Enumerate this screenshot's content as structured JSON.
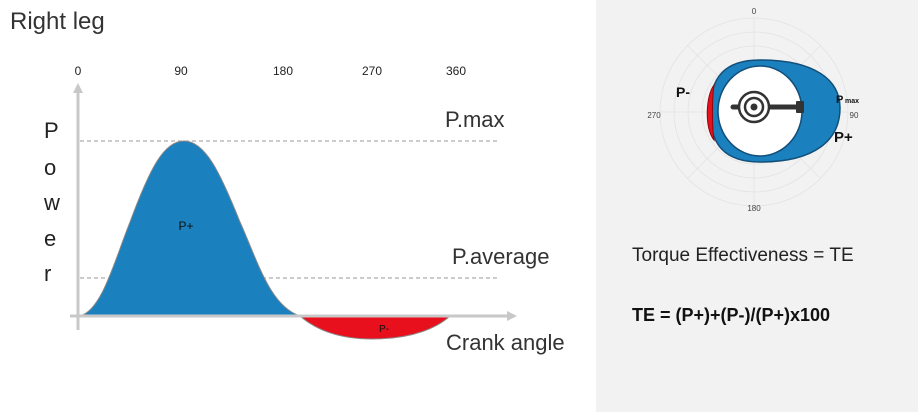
{
  "title": "Right leg",
  "graph": {
    "x_ticks": [
      "0",
      "90",
      "180",
      "270",
      "360"
    ],
    "y_axis_letters": [
      "P",
      "o",
      "w",
      "e",
      "r"
    ],
    "pmax_label": "P.max",
    "paverage_label": "P.average",
    "xlabel": "Crank angle",
    "positive_label": "P+",
    "negative_label": "P-"
  },
  "dial": {
    "deg_top": "0",
    "deg_right": "90",
    "deg_bottom": "180",
    "deg_left": "270",
    "label_pminus": "P-",
    "label_pmax": "P",
    "label_pmax_sub": "max",
    "label_pplus": "P+"
  },
  "te_definition": "Torque Effectiveness = TE",
  "te_formula": "TE = (P+)+(P-)/(P+)x100",
  "colors": {
    "positive": "#1b80be",
    "negative": "#e8101c",
    "axis": "#c8c8c8",
    "dashed": "#999999",
    "panel_bg": "#f2f2f2"
  }
}
